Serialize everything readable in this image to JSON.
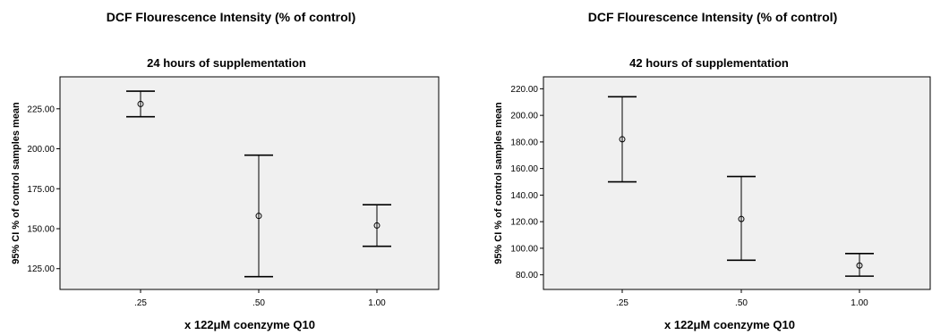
{
  "chart_data": [
    {
      "type": "errorbar",
      "title": "DCF Flourescence Intensity  (% of control)",
      "subtitle": "24 hours of supplementation",
      "xlabel": "x 122μM coenzyme Q10",
      "ylabel": "95% CI % of control samples mean",
      "categories": [
        ".25",
        ".50",
        "1.00"
      ],
      "mean": [
        228,
        158,
        152
      ],
      "ci_low": [
        220,
        120,
        139
      ],
      "ci_high": [
        236,
        196,
        165
      ],
      "ylim": [
        112,
        245
      ],
      "yticks": [
        125,
        150,
        175,
        200,
        225
      ],
      "ytick_labels": [
        "125.00",
        "150.00",
        "175.00",
        "200.00",
        "225.00"
      ],
      "grid": false,
      "panel_color": "#f0f0f0"
    },
    {
      "type": "errorbar",
      "title": "DCF Flourescence Intensity  (% of control)",
      "subtitle": "42 hours of supplementation",
      "xlabel": "x 122μM coenzyme Q10",
      "ylabel": "95% CI % of control samples mean",
      "categories": [
        ".25",
        ".50",
        "1.00"
      ],
      "mean": [
        182,
        122,
        87
      ],
      "ci_low": [
        150,
        91,
        79
      ],
      "ci_high": [
        214,
        154,
        96
      ],
      "ylim": [
        69,
        229
      ],
      "yticks": [
        80,
        100,
        120,
        140,
        160,
        180,
        200,
        220
      ],
      "ytick_labels": [
        "80.00",
        "100.00",
        "120.00",
        "140.00",
        "160.00",
        "180.00",
        "200.00",
        "220.00"
      ],
      "grid": false,
      "panel_color": "#f0f0f0"
    }
  ]
}
